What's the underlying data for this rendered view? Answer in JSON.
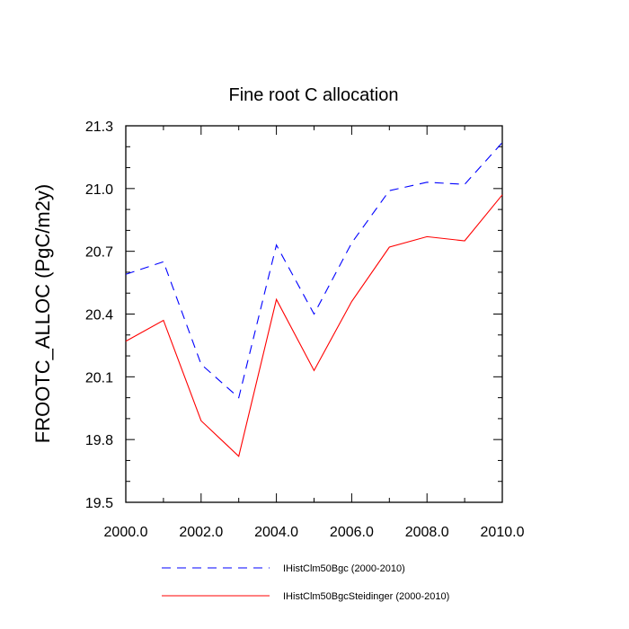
{
  "chart_data": {
    "type": "line",
    "title": "Fine root C allocation",
    "xlabel": "",
    "ylabel": "FROOTC_ALLOC  (PgC/m2y)",
    "xlim": [
      2000,
      2010
    ],
    "ylim": [
      19.5,
      21.3
    ],
    "x": [
      2000,
      2001,
      2002,
      2003,
      2004,
      2005,
      2006,
      2007,
      2008,
      2009,
      2010
    ],
    "xticks": [
      "2000.0",
      "2002.0",
      "2004.0",
      "2006.0",
      "2008.0",
      "2010.0"
    ],
    "yticks": [
      "19.5",
      "19.8",
      "20.1",
      "20.4",
      "20.7",
      "21.0",
      "21.3"
    ],
    "grid": false,
    "legend_position": "bottom",
    "series": [
      {
        "name": "IHistClm50Bgc (2000-2010)",
        "color": "#0000ff",
        "style": "dashed",
        "values": [
          20.59,
          20.65,
          20.16,
          20.0,
          20.73,
          20.4,
          20.74,
          20.99,
          21.03,
          21.02,
          21.22
        ]
      },
      {
        "name": "IHistClm50BgcSteidinger (2000-2010)",
        "color": "#ff0000",
        "style": "solid",
        "values": [
          20.27,
          20.37,
          19.89,
          19.72,
          20.47,
          20.13,
          20.46,
          20.72,
          20.77,
          20.75,
          20.97
        ]
      }
    ]
  }
}
